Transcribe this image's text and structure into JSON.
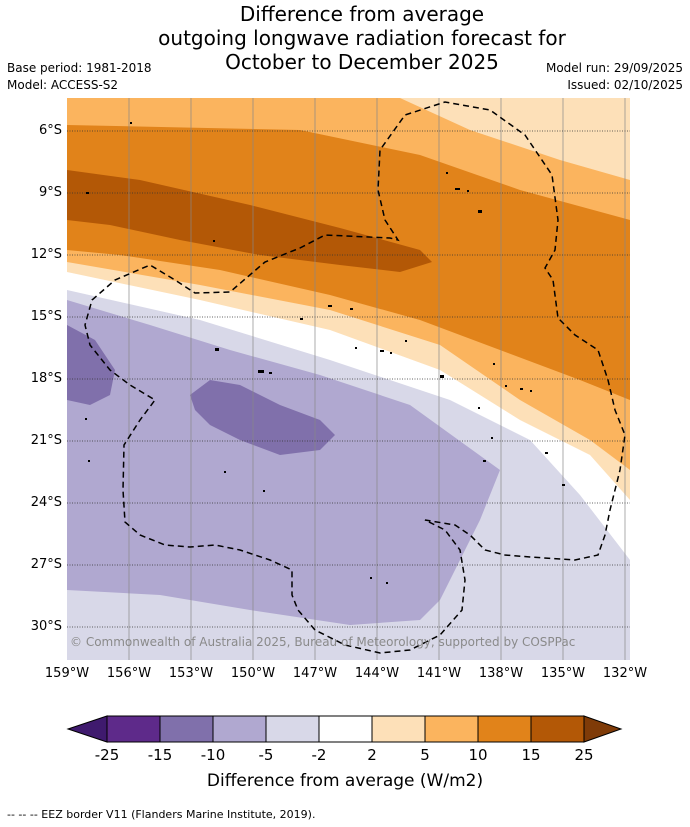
{
  "title_lines": [
    "Difference from average",
    "outgoing longwave radiation forecast for",
    "October to December 2025"
  ],
  "meta": {
    "base_period": "Base period: 1981-2018",
    "model": "Model: ACCESS-S2",
    "model_run": "Model run: 29/09/2025",
    "issued": "Issued: 02/10/2025"
  },
  "map": {
    "lat_labels": [
      "6°S",
      "9°S",
      "12°S",
      "15°S",
      "18°S",
      "21°S",
      "24°S",
      "27°S",
      "30°S"
    ],
    "lon_labels": [
      "159°W",
      "156°W",
      "153°W",
      "150°W",
      "147°W",
      "144°W",
      "141°W",
      "138°W",
      "135°W",
      "132°W"
    ],
    "copyright": "© Commonwealth of Australia 2025, Bureau of Meteorology, supported by COSPPac"
  },
  "colorbar": {
    "ticks": [
      "-25",
      "-15",
      "-10",
      "-5",
      "-2",
      "2",
      "5",
      "10",
      "15",
      "25"
    ],
    "colors": [
      "#3f1a6e",
      "#5e2a8a",
      "#8070ab",
      "#b0a8d0",
      "#d8d8e8",
      "#ffffff",
      "#fde0b8",
      "#fbb45e",
      "#e1831a",
      "#b35806",
      "#7f3b08"
    ],
    "title": "Difference from average (W/m2)"
  },
  "footer": "--  --  -- EEZ border V11 (Flanders Marine Institute, 2019)."
}
